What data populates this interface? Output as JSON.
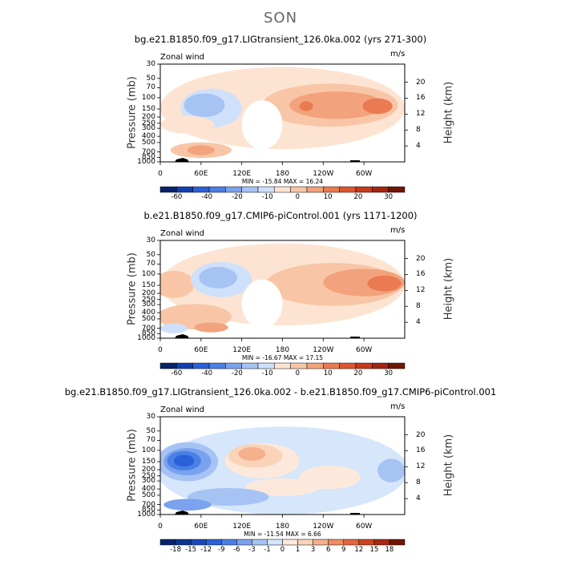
{
  "figure": {
    "title": "SON"
  },
  "chart_data": [
    {
      "type": "heatmap",
      "title": "bg.e21.B1850.f09_g17.LIGtransient_126.0ka.002 (yrs 271-300)",
      "subtitle_left": "Zonal wind",
      "subtitle_right": "m/s",
      "ylabel": "Pressure (mb)",
      "ylabel_right": "Height (km)",
      "x_ticks": [
        "0",
        "60E",
        "120E",
        "180",
        "120W",
        "60W"
      ],
      "y_ticks": [
        "30",
        "50",
        "70",
        "100",
        "150",
        "200",
        "250",
        "300",
        "400",
        "500",
        "700",
        "850",
        "1000"
      ],
      "y_right_ticks": [
        "20",
        "16",
        "12",
        "8",
        "4"
      ],
      "min": -15.84,
      "max": 16.24,
      "minmax_label": "MIN = -15.84   MAX =  16.24",
      "levels": [
        -60,
        -40,
        -20,
        -10,
        0,
        10,
        20,
        30
      ],
      "colorbar_labels": [
        "-60",
        "-40",
        "-20",
        "-10",
        "0",
        "10",
        "20",
        "30"
      ],
      "colorbar_colors": [
        "#05246b",
        "#1240b0",
        "#2a60d8",
        "#4a7fe6",
        "#7aa2ee",
        "#a6c3f4",
        "#cfe0fa",
        "#fde4d2",
        "#f8c6a6",
        "#f2a27c",
        "#ea7a52",
        "#de552d",
        "#c8391a",
        "#a42410",
        "#701505"
      ]
    },
    {
      "type": "heatmap",
      "title": "b.e21.B1850.f09_g17.CMIP6-piControl.001 (yrs 1171-1200)",
      "subtitle_left": "Zonal wind",
      "subtitle_right": "m/s",
      "ylabel": "Pressure (mb)",
      "ylabel_right": "Height (km)",
      "x_ticks": [
        "0",
        "60E",
        "120E",
        "180",
        "120W",
        "60W"
      ],
      "y_ticks": [
        "30",
        "50",
        "70",
        "100",
        "150",
        "200",
        "250",
        "300",
        "400",
        "500",
        "700",
        "850",
        "1000"
      ],
      "y_right_ticks": [
        "20",
        "16",
        "12",
        "8",
        "4"
      ],
      "min": -16.67,
      "max": 17.15,
      "minmax_label": "MIN = -16.67   MAX =  17.15",
      "levels": [
        -60,
        -40,
        -20,
        -10,
        0,
        10,
        20,
        30
      ],
      "colorbar_labels": [
        "-60",
        "-40",
        "-20",
        "-10",
        "0",
        "10",
        "20",
        "30"
      ],
      "colorbar_colors": [
        "#05246b",
        "#1240b0",
        "#2a60d8",
        "#4a7fe6",
        "#7aa2ee",
        "#a6c3f4",
        "#cfe0fa",
        "#fde4d2",
        "#f8c6a6",
        "#f2a27c",
        "#ea7a52",
        "#de552d",
        "#c8391a",
        "#a42410",
        "#701505"
      ]
    },
    {
      "type": "heatmap",
      "title": "bg.e21.B1850.f09_g17.LIGtransient_126.0ka.002 - b.e21.B1850.f09_g17.CMIP6-piControl.001",
      "subtitle_left": "Zonal wind",
      "subtitle_right": "m/s",
      "ylabel": "Pressure (mb)",
      "ylabel_right": "Height (km)",
      "x_ticks": [
        "0",
        "60E",
        "120E",
        "180",
        "120W",
        "60W"
      ],
      "y_ticks": [
        "30",
        "50",
        "70",
        "100",
        "150",
        "200",
        "250",
        "300",
        "400",
        "500",
        "700",
        "850",
        "1000"
      ],
      "y_right_ticks": [
        "20",
        "16",
        "12",
        "8",
        "4"
      ],
      "min": -11.54,
      "max": 6.66,
      "minmax_label": "MIN = -11.54   MAX =   6.66",
      "levels": [
        -18,
        -15,
        -12,
        -9,
        -6,
        -3,
        -1,
        0,
        1,
        3,
        6,
        9,
        12,
        15,
        18
      ],
      "colorbar_labels": [
        "-18",
        "-15",
        "-12",
        "-9",
        "-6",
        "-3",
        "-1",
        "0",
        "1",
        "3",
        "6",
        "9",
        "12",
        "15",
        "18"
      ],
      "colorbar_colors": [
        "#05246b",
        "#0d3592",
        "#1a48b8",
        "#2a60d8",
        "#4a7fe6",
        "#7aa2ee",
        "#a6c3f4",
        "#d6e6fb",
        "#fde9dc",
        "#fbd3b8",
        "#f5b08c",
        "#ee8c64",
        "#e2663d",
        "#cc4320",
        "#a82810",
        "#701505"
      ]
    }
  ]
}
